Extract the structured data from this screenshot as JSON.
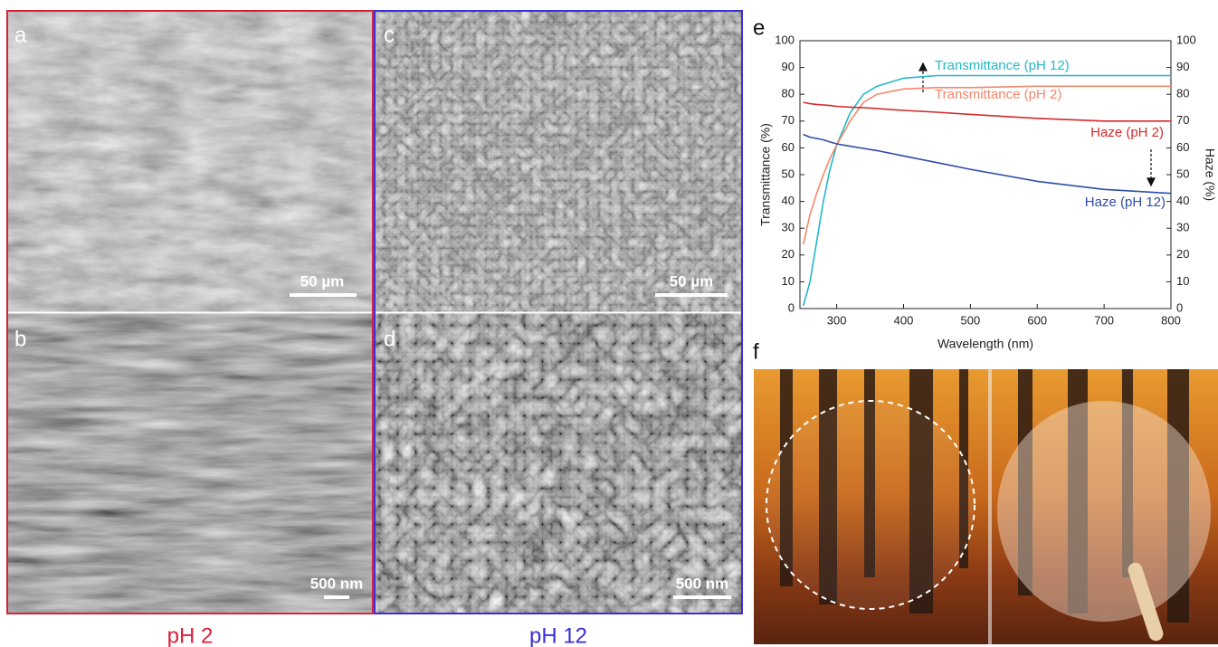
{
  "panels": [
    {
      "label": "a",
      "scale_bar": "50 µm"
    },
    {
      "label": "b",
      "scale_bar": "500 nm"
    },
    {
      "label": "c",
      "scale_bar": "50 µm"
    },
    {
      "label": "d",
      "scale_bar": "500 nm"
    }
  ],
  "captions": [
    "pH 2",
    "pH 12"
  ],
  "photo_label": "f",
  "chart_data": {
    "type": "line",
    "panel_label": "e",
    "x_label": "Wavelength (nm)",
    "y_label": "Transmittance (%)",
    "y2_label": "Haze (%)",
    "x": [
      250,
      260,
      270,
      280,
      290,
      300,
      320,
      340,
      360,
      400,
      450,
      500,
      600,
      700,
      800
    ],
    "series": [
      {
        "name": "Transmittance (pH 12)",
        "color": "#22b8c8",
        "values": [
          1,
          10,
          25,
          40,
          52,
          61,
          73,
          80,
          83,
          86,
          87,
          87,
          87,
          87,
          87
        ]
      },
      {
        "name": "Transmittance (pH 2)",
        "color": "#f4876a",
        "values": [
          24,
          35,
          43,
          50,
          56,
          61,
          70,
          77,
          80,
          82,
          82.5,
          82.5,
          83,
          83,
          83
        ]
      },
      {
        "name": "Haze (pH 2)",
        "color": "#d42a2a",
        "axis": "y2",
        "values": [
          77,
          76.5,
          76.2,
          76,
          75.8,
          75.5,
          75.2,
          75,
          74.7,
          74,
          73.3,
          72.5,
          71,
          70,
          70
        ]
      },
      {
        "name": "Haze (pH 12)",
        "color": "#2e4ca8",
        "axis": "y2",
        "values": [
          65,
          64,
          63.5,
          63,
          62.2,
          61.5,
          60.6,
          59.8,
          59,
          57,
          54.5,
          52,
          47.5,
          44.5,
          43
        ]
      }
    ],
    "xlim": [
      245,
      800
    ],
    "xticks": [
      300,
      400,
      500,
      600,
      700,
      800
    ],
    "ylim": [
      0,
      100
    ],
    "yticks": [
      0,
      10,
      20,
      30,
      40,
      50,
      60,
      70,
      80,
      90,
      100
    ],
    "y2lim": [
      0,
      100
    ],
    "y2ticks": [
      0,
      10,
      20,
      30,
      40,
      50,
      60,
      70,
      80,
      90,
      100
    ]
  }
}
